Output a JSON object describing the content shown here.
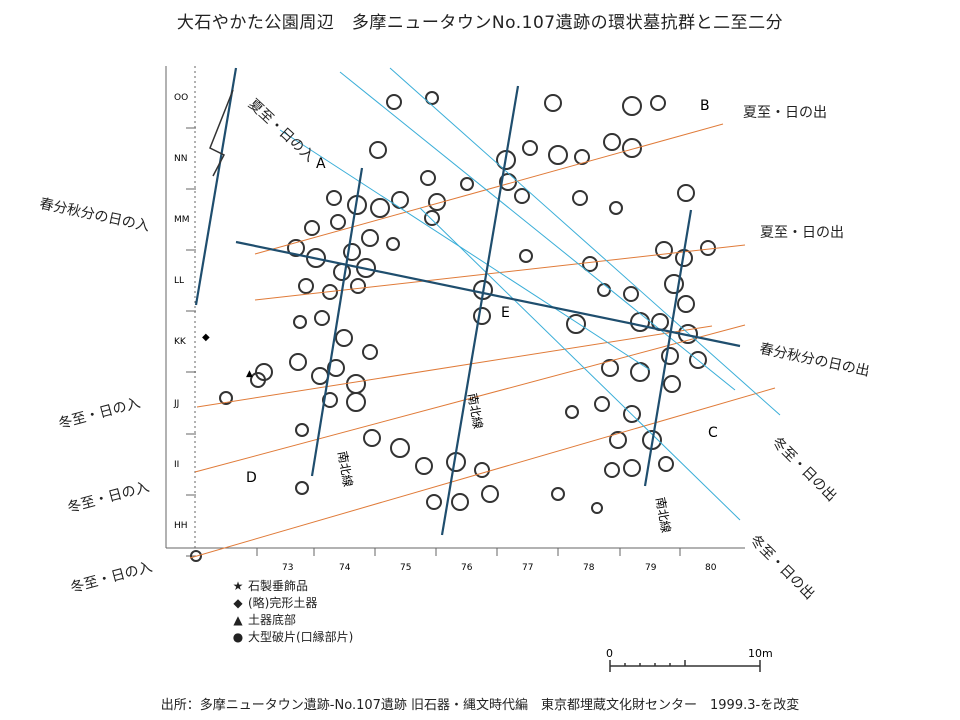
{
  "title": "大石やかた公園周辺　多摩ニュータウンNo.107遺跡の環状墓抗群と二至二分",
  "caption": "出所：多摩ニュータウン遺跡-No.107遺跡 旧石器・縄文時代編　東京都埋蔵文化財センター　1999.3-を改変",
  "row_labels": [
    "OO",
    "NN",
    "MM",
    "LL",
    "KK",
    "JJ",
    "II",
    "HH"
  ],
  "col_labels": [
    "73",
    "74",
    "75",
    "76",
    "77",
    "78",
    "79",
    "80"
  ],
  "area_labels": {
    "a": "A",
    "b": "B",
    "c": "C",
    "d": "D",
    "e": "E"
  },
  "direction_labels": {
    "summer_sunset": "夏至・日の入",
    "summer_sunrise_1": "夏至・日の出",
    "summer_sunrise_2": "夏至・日の出",
    "equinox_sunset": "春分秋分の日の入",
    "equinox_sunrise": "春分秋分の日の出",
    "winter_sunset_1": "冬至・日の入",
    "winter_sunset_2": "冬至・日の入",
    "winter_sunset_3": "冬至・日の入",
    "winter_sunrise_1": "冬至・日の出",
    "winter_sunrise_2": "冬至・日の出",
    "north_south": "南北線"
  },
  "legend": [
    {
      "symbol": "★",
      "label": "石製垂飾品"
    },
    {
      "symbol": "◆",
      "label": "(略)完形土器"
    },
    {
      "symbol": "▲",
      "label": "土器底部"
    },
    {
      "symbol": "●",
      "label": "大型破片(口縁部片)"
    }
  ],
  "scale": {
    "start": "0",
    "end": "10m"
  },
  "colors": {
    "orange": "#e07b39",
    "cyan": "#3aaed8",
    "teal": "#1f4e6e",
    "ink": "#333333"
  }
}
